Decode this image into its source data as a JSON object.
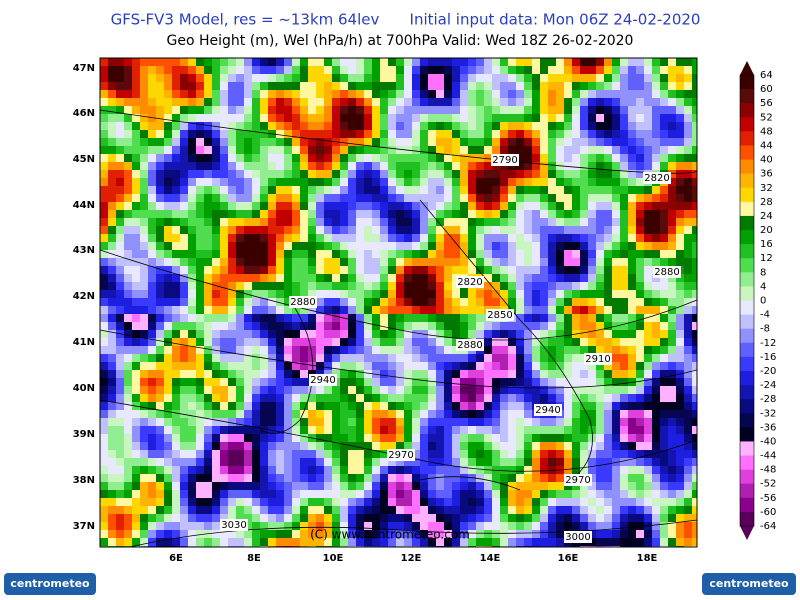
{
  "title": "GFS-FV3 Model, res = ~13km 64lev",
  "init": "Initial input data: Mon 06Z 24-02-2020",
  "subtitle": "Geo Height (m), Wel (hPa/h) at 700hPa  Valid: Wed 18Z 26-02-2020",
  "lat_labels": [
    "47N",
    "46N",
    "45N",
    "44N",
    "43N",
    "42N",
    "41N",
    "40N",
    "39N",
    "38N",
    "37N"
  ],
  "lon_labels": [
    "6E",
    "8E",
    "10E",
    "12E",
    "14E",
    "16E",
    "18E"
  ],
  "colorbar": {
    "labels": [
      64,
      60,
      56,
      52,
      48,
      44,
      40,
      36,
      32,
      28,
      24,
      20,
      16,
      12,
      8,
      4,
      0,
      -4,
      -8,
      -12,
      -16,
      -20,
      -24,
      -28,
      -32,
      -36,
      -40,
      -44,
      -48,
      -52,
      -56,
      -60,
      -64
    ],
    "colors": [
      "#3a0000",
      "#5a0a0a",
      "#8b0000",
      "#c00000",
      "#e02000",
      "#ff5000",
      "#ff8c00",
      "#ffb400",
      "#ffd700",
      "#fff8a0",
      "#007a00",
      "#00a000",
      "#20c020",
      "#50dd50",
      "#90ee90",
      "#c8f5c0",
      "#e8e8ff",
      "#c0c0ff",
      "#9090ff",
      "#6060ff",
      "#3a3aff",
      "#1e1ee0",
      "#1414b0",
      "#0a0a80",
      "#050550",
      "#000020",
      "#ffb0ff",
      "#ff70ff",
      "#e040e0",
      "#b020b0",
      "#8a008a",
      "#5a005a"
    ]
  },
  "contour_labels": [
    "2790",
    "2820",
    "2880",
    "2820",
    "2850",
    "2880",
    "2880",
    "2910",
    "2940",
    "2940",
    "2970",
    "2970",
    "3030",
    "3000"
  ],
  "copyright": "(C) www.centrometeo.com",
  "logo_left": "centrometeo",
  "logo_right": "centrometeo"
}
